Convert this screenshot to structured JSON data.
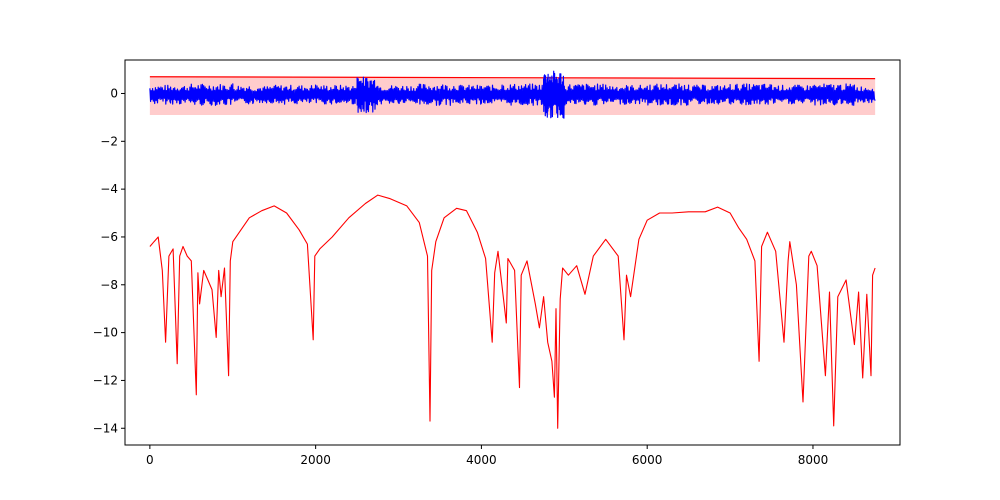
{
  "chart_data": {
    "type": "line",
    "title": "",
    "xlabel": "",
    "ylabel": "",
    "xlim": [
      -300,
      9050
    ],
    "ylim": [
      -14.7,
      1.4
    ],
    "x_ticks": [
      0,
      2000,
      4000,
      6000,
      8000
    ],
    "x_tick_labels": [
      "0",
      "2000",
      "4000",
      "6000",
      "8000"
    ],
    "y_ticks": [
      0,
      -2,
      -4,
      -6,
      -8,
      -10,
      -12,
      -14
    ],
    "y_tick_labels": [
      "0",
      "−2",
      "−4",
      "−6",
      "−8",
      "−10",
      "−12",
      "−14"
    ],
    "grid": false,
    "legend": "none",
    "colors": {
      "signal": "#0000ff",
      "envelope": "#ff0000",
      "band_fill": "#ffcccc"
    },
    "band": {
      "x": [
        0,
        8750
      ],
      "upper": 0.7,
      "upper_end": 0.62,
      "lower": -0.9,
      "note_upper_line_visible": true
    },
    "series": [
      {
        "color": "#0000ff",
        "style": "noisy signal around zero",
        "x": [
          0,
          250,
          500,
          750,
          1000,
          1250,
          1500,
          1750,
          2000,
          2250,
          2500,
          2550,
          2750,
          3000,
          3250,
          3500,
          3750,
          4000,
          4250,
          4500,
          4750,
          4840,
          5000,
          5250,
          5500,
          5750,
          6000,
          6250,
          6500,
          6750,
          7000,
          7250,
          7500,
          7750,
          8000,
          8250,
          8500,
          8750
        ],
        "values": [
          0.3,
          -0.4,
          0.35,
          -0.45,
          0.4,
          -0.35,
          0.3,
          -0.4,
          0.35,
          -0.4,
          0.3,
          -0.75,
          0.3,
          -0.4,
          0.35,
          -0.45,
          0.3,
          -0.4,
          0.35,
          -0.45,
          0.3,
          -1.0,
          0.3,
          -0.45,
          0.35,
          -0.4,
          0.3,
          -0.45,
          0.35,
          -0.4,
          0.3,
          -0.45,
          0.35,
          -0.4,
          0.3,
          -0.45,
          0.35,
          -0.3
        ]
      },
      {
        "color": "#ff0000",
        "style": "envelope",
        "x": [
          0,
          50,
          100,
          150,
          190,
          230,
          280,
          330,
          360,
          400,
          450,
          500,
          560,
          580,
          600,
          650,
          700,
          750,
          800,
          830,
          860,
          900,
          950,
          970,
          1000,
          1100,
          1200,
          1350,
          1500,
          1650,
          1800,
          1900,
          1970,
          1990,
          2050,
          2200,
          2400,
          2600,
          2750,
          2900,
          3100,
          3250,
          3350,
          3380,
          3400,
          3450,
          3550,
          3700,
          3820,
          3950,
          4050,
          4130,
          4160,
          4200,
          4300,
          4320,
          4400,
          4460,
          4480,
          4550,
          4650,
          4700,
          4750,
          4800,
          4850,
          4880,
          4900,
          4920,
          4950,
          4980,
          5050,
          5150,
          5250,
          5350,
          5500,
          5650,
          5720,
          5750,
          5800,
          5900,
          6000,
          6150,
          6300,
          6500,
          6700,
          6850,
          7000,
          7100,
          7200,
          7300,
          7350,
          7380,
          7450,
          7550,
          7650,
          7700,
          7720,
          7800,
          7880,
          7950,
          7980,
          8050,
          8150,
          8200,
          8250,
          8300,
          8400,
          8500,
          8550,
          8600,
          8650,
          8700,
          8720,
          8750
        ],
        "values": [
          -6.4,
          -6.2,
          -6.0,
          -7.4,
          -10.4,
          -6.8,
          -6.5,
          -11.3,
          -6.8,
          -6.4,
          -6.8,
          -7.0,
          -12.6,
          -7.5,
          -8.8,
          -7.4,
          -7.8,
          -8.2,
          -10.2,
          -7.4,
          -8.5,
          -7.3,
          -11.8,
          -7.0,
          -6.2,
          -5.7,
          -5.2,
          -4.9,
          -4.7,
          -5.0,
          -5.7,
          -6.3,
          -10.3,
          -6.8,
          -6.5,
          -6.0,
          -5.2,
          -4.6,
          -4.25,
          -4.4,
          -4.7,
          -5.4,
          -6.8,
          -13.7,
          -7.4,
          -6.2,
          -5.2,
          -4.8,
          -4.9,
          -5.8,
          -6.9,
          -10.4,
          -7.5,
          -6.6,
          -9.6,
          -6.9,
          -7.4,
          -12.3,
          -7.6,
          -7.0,
          -8.8,
          -9.8,
          -8.5,
          -10.4,
          -11.2,
          -12.7,
          -9.0,
          -14.0,
          -8.6,
          -7.3,
          -7.6,
          -7.2,
          -8.4,
          -6.8,
          -6.1,
          -6.8,
          -10.3,
          -7.6,
          -8.5,
          -6.1,
          -5.3,
          -5.0,
          -5.0,
          -4.95,
          -4.95,
          -4.75,
          -5.0,
          -5.6,
          -6.1,
          -7.0,
          -11.2,
          -6.4,
          -5.8,
          -6.6,
          -10.4,
          -7.0,
          -6.2,
          -8.0,
          -12.9,
          -6.8,
          -6.6,
          -7.2,
          -11.8,
          -8.3,
          -13.9,
          -8.5,
          -7.8,
          -10.5,
          -8.3,
          -11.9,
          -8.4,
          -11.8,
          -7.6,
          -7.3
        ]
      }
    ]
  }
}
